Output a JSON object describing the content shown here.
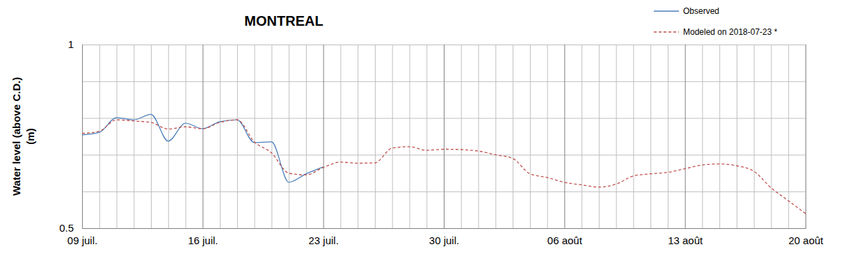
{
  "chart_data": {
    "type": "line",
    "title": "MONTREAL",
    "y_label": "Water level (above C.D.)\n(m)",
    "categories": [
      "09 juil.",
      null,
      null,
      null,
      null,
      null,
      null,
      "16 juil.",
      null,
      null,
      null,
      null,
      null,
      null,
      "23 juil.",
      null,
      null,
      null,
      null,
      null,
      null,
      "30 juil.",
      null,
      null,
      null,
      null,
      null,
      null,
      "06 août",
      null,
      null,
      null,
      null,
      null,
      null,
      "13 août",
      null,
      null,
      null,
      null,
      null,
      null,
      "20 août"
    ],
    "series": [
      {
        "name": "Observed",
        "color": "#4a7ebb",
        "line_style": "solid",
        "values": [
          0.754,
          0.761,
          0.801,
          0.795,
          0.81,
          0.737,
          0.786,
          0.771,
          0.79,
          0.795,
          0.733,
          0.735,
          0.625,
          0.648,
          0.667,
          null,
          null,
          null,
          null,
          null,
          null,
          null,
          null,
          null,
          null,
          null,
          null,
          null,
          null,
          null,
          null,
          null,
          null,
          null,
          null,
          null,
          null,
          null,
          null,
          null,
          null,
          null,
          null
        ]
      },
      {
        "name": "Modeled on 2018-07-23 *",
        "color": "#c0504d",
        "line_style": "dashed",
        "values": [
          0.758,
          0.764,
          0.795,
          0.792,
          0.788,
          0.77,
          0.776,
          0.771,
          0.788,
          0.795,
          0.735,
          0.705,
          0.65,
          0.645,
          0.665,
          0.68,
          0.677,
          0.678,
          0.718,
          0.722,
          0.712,
          0.715,
          0.714,
          0.71,
          0.7,
          0.69,
          0.648,
          0.638,
          0.625,
          0.618,
          0.612,
          0.62,
          0.642,
          0.648,
          0.652,
          0.662,
          0.672,
          0.675,
          0.67,
          0.655,
          0.61,
          0.575,
          0.54
        ]
      }
    ],
    "ylim": [
      0.5,
      1
    ],
    "yticks": [
      0.5,
      {
        "value": 0.6,
        "label": null
      },
      {
        "value": 0.7,
        "label": null
      },
      {
        "value": 0.8,
        "label": null
      },
      {
        "value": 0.9,
        "label": null
      },
      1
    ],
    "grid": true,
    "legend": "top-right"
  }
}
